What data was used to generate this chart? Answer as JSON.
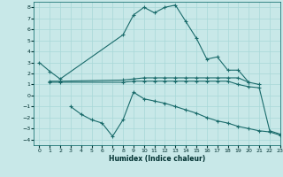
{
  "title": "",
  "xlabel": "Humidex (Indice chaleur)",
  "bg_color": "#c8e8e8",
  "grid_color": "#a8d8d8",
  "line_color": "#1a6b6b",
  "xlim": [
    -0.5,
    23
  ],
  "ylim": [
    -4.5,
    8.5
  ],
  "xticks": [
    0,
    1,
    2,
    3,
    4,
    5,
    6,
    7,
    8,
    9,
    10,
    11,
    12,
    13,
    14,
    15,
    16,
    17,
    18,
    19,
    20,
    21,
    22,
    23
  ],
  "yticks": [
    -4,
    -3,
    -2,
    -1,
    0,
    1,
    2,
    3,
    4,
    5,
    6,
    7,
    8
  ],
  "series": [
    {
      "x": [
        0,
        1,
        2,
        8,
        9,
        10,
        11,
        12,
        13,
        14,
        15,
        16,
        17,
        18,
        19,
        20
      ],
      "y": [
        3.0,
        2.2,
        1.5,
        5.5,
        7.3,
        8.0,
        7.5,
        8.0,
        8.2,
        6.7,
        5.2,
        3.3,
        3.5,
        2.3,
        2.3,
        1.2
      ]
    },
    {
      "x": [
        1,
        2,
        8,
        9,
        10,
        11,
        12,
        13,
        14,
        15,
        16,
        17,
        18,
        19,
        20,
        21
      ],
      "y": [
        1.3,
        1.3,
        1.4,
        1.5,
        1.6,
        1.6,
        1.6,
        1.6,
        1.6,
        1.6,
        1.6,
        1.6,
        1.6,
        1.6,
        1.2,
        1.0
      ]
    },
    {
      "x": [
        1,
        2,
        8,
        9,
        10,
        11,
        12,
        13,
        14,
        15,
        16,
        17,
        18,
        19,
        20,
        21,
        22,
        23
      ],
      "y": [
        1.2,
        1.2,
        1.2,
        1.3,
        1.3,
        1.3,
        1.3,
        1.3,
        1.3,
        1.3,
        1.3,
        1.3,
        1.3,
        1.0,
        0.8,
        0.7,
        -3.2,
        -3.5
      ]
    },
    {
      "x": [
        3,
        4,
        5,
        6,
        7,
        8,
        9,
        10,
        11,
        12,
        13,
        14,
        15,
        16,
        17,
        18,
        19,
        20,
        21,
        22,
        23
      ],
      "y": [
        -1.0,
        -1.7,
        -2.2,
        -2.5,
        -3.7,
        -2.2,
        0.3,
        -0.3,
        -0.5,
        -0.7,
        -1.0,
        -1.3,
        -1.6,
        -2.0,
        -2.3,
        -2.5,
        -2.8,
        -3.0,
        -3.2,
        -3.3,
        -3.6
      ]
    }
  ]
}
